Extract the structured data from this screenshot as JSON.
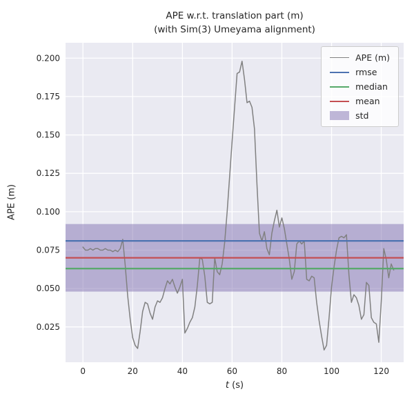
{
  "chart_data": {
    "type": "line",
    "title": "APE w.r.t. translation part (m)",
    "subtitle": "(with Sim(3) Umeyama alignment)",
    "xlabel": "t (s)",
    "xlabel_var": "t",
    "xlabel_unit": " (s)",
    "ylabel": "APE (m)",
    "xlim": [
      -7,
      129
    ],
    "ylim": [
      0.002,
      0.21
    ],
    "xticks": [
      0,
      20,
      40,
      60,
      80,
      100,
      120
    ],
    "yticks": [
      0.025,
      0.05,
      0.075,
      0.1,
      0.125,
      0.15,
      0.175,
      0.2
    ],
    "grid": true,
    "legend_position": "upper right",
    "background": "#eaeaf2",
    "grid_color": "#ffffff",
    "text_color": "#262626",
    "series": [
      {
        "name": "APE (m)",
        "type": "line",
        "color": "#808080",
        "linewidth": 1.5,
        "x": [
          0,
          1,
          2,
          3,
          4,
          5,
          6,
          7,
          8,
          9,
          10,
          11,
          12,
          13,
          14,
          15,
          16,
          17,
          18,
          19,
          20,
          21,
          22,
          23,
          24,
          25,
          26,
          27,
          28,
          29,
          30,
          31,
          32,
          33,
          34,
          35,
          36,
          37,
          38,
          39,
          40,
          41,
          42,
          43,
          44,
          45,
          46,
          47,
          48,
          49,
          50,
          51,
          52,
          53,
          54,
          55,
          56,
          57,
          58,
          59,
          60,
          61,
          62,
          63,
          64,
          65,
          66,
          67,
          68,
          69,
          70,
          71,
          72,
          73,
          74,
          75,
          76,
          77,
          78,
          79,
          80,
          81,
          82,
          83,
          84,
          85,
          86,
          87,
          88,
          89,
          90,
          91,
          92,
          93,
          94,
          95,
          96,
          97,
          98,
          99,
          100,
          101,
          102,
          103,
          104,
          105,
          106,
          107,
          108,
          109,
          110,
          111,
          112,
          113,
          114,
          115,
          116,
          117,
          118,
          119,
          120,
          121,
          122,
          123,
          124,
          125
        ],
        "y": [
          0.077,
          0.075,
          0.075,
          0.076,
          0.075,
          0.076,
          0.076,
          0.075,
          0.075,
          0.076,
          0.075,
          0.075,
          0.074,
          0.075,
          0.074,
          0.076,
          0.082,
          0.065,
          0.045,
          0.03,
          0.018,
          0.013,
          0.011,
          0.022,
          0.035,
          0.041,
          0.04,
          0.034,
          0.03,
          0.038,
          0.042,
          0.041,
          0.044,
          0.05,
          0.055,
          0.053,
          0.056,
          0.051,
          0.047,
          0.051,
          0.056,
          0.021,
          0.024,
          0.028,
          0.031,
          0.038,
          0.052,
          0.07,
          0.069,
          0.058,
          0.041,
          0.04,
          0.041,
          0.07,
          0.061,
          0.059,
          0.066,
          0.08,
          0.1,
          0.123,
          0.146,
          0.168,
          0.19,
          0.191,
          0.198,
          0.186,
          0.171,
          0.172,
          0.168,
          0.154,
          0.118,
          0.086,
          0.081,
          0.087,
          0.076,
          0.072,
          0.086,
          0.094,
          0.101,
          0.09,
          0.096,
          0.089,
          0.079,
          0.069,
          0.056,
          0.061,
          0.079,
          0.081,
          0.079,
          0.081,
          0.056,
          0.055,
          0.058,
          0.057,
          0.041,
          0.029,
          0.019,
          0.01,
          0.013,
          0.031,
          0.051,
          0.064,
          0.075,
          0.083,
          0.084,
          0.083,
          0.085,
          0.059,
          0.041,
          0.046,
          0.044,
          0.039,
          0.03,
          0.033,
          0.054,
          0.052,
          0.031,
          0.028,
          0.027,
          0.015,
          0.042,
          0.076,
          0.069,
          0.057,
          0.066,
          0.062
        ]
      },
      {
        "name": "rmse",
        "type": "hline",
        "color": "#4c72b0",
        "linewidth": 2.2,
        "value": 0.081
      },
      {
        "name": "median",
        "type": "hline",
        "color": "#55a868",
        "linewidth": 2.2,
        "value": 0.063
      },
      {
        "name": "mean",
        "type": "hline",
        "color": "#c44e52",
        "linewidth": 2.2,
        "value": 0.07
      },
      {
        "name": "std",
        "type": "band",
        "color": "#8172b2",
        "alpha": 0.5,
        "low": 0.048,
        "high": 0.092
      }
    ]
  }
}
